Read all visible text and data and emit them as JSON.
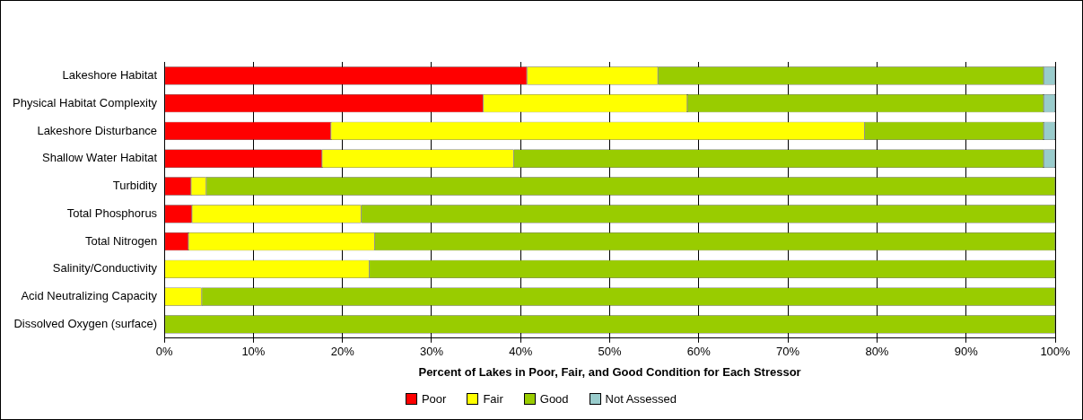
{
  "chart_data": {
    "type": "bar",
    "orientation": "horizontal",
    "stacked": true,
    "xlabel": "Percent of Lakes in Poor, Fair, and Good Condition for Each Stressor",
    "categories": [
      "Lakeshore Habitat",
      "Physical Habitat Complexity",
      "Lakeshore Disturbance",
      "Shallow Water Habitat",
      "Turbidity",
      "Total Phosphorus",
      "Total Nitrogen",
      "Salinity/Conductivity",
      "Acid Neutralizing Capacity",
      "Dissolved Oxygen (surface)"
    ],
    "series": [
      {
        "name": "Poor",
        "color": "#ff0000",
        "values": [
          40.7,
          35.8,
          18.7,
          17.7,
          3.0,
          3.1,
          2.7,
          0,
          0,
          0
        ]
      },
      {
        "name": "Fair",
        "color": "#ffff00",
        "values": [
          14.7,
          22.9,
          59.9,
          21.5,
          1.7,
          19.0,
          20.9,
          23.0,
          4.2,
          0
        ]
      },
      {
        "name": "Good",
        "color": "#99cc00",
        "values": [
          43.3,
          40.0,
          20.1,
          59.5,
          95.3,
          77.9,
          76.4,
          77.0,
          95.8,
          100
        ]
      },
      {
        "name": "Not Assessed",
        "color": "#99cccc",
        "values": [
          1.3,
          1.3,
          1.3,
          1.3,
          0,
          0,
          0,
          0,
          0,
          0
        ]
      }
    ],
    "xlim": [
      0,
      100
    ],
    "xticks": [
      {
        "value": 0,
        "label": "0%"
      },
      {
        "value": 10,
        "label": "10%"
      },
      {
        "value": 20,
        "label": "20%"
      },
      {
        "value": 30,
        "label": "30%"
      },
      {
        "value": 40,
        "label": "40%"
      },
      {
        "value": 50,
        "label": "50%"
      },
      {
        "value": 60,
        "label": "60%"
      },
      {
        "value": 70,
        "label": "70%"
      },
      {
        "value": 80,
        "label": "80%"
      },
      {
        "value": 90,
        "label": "90%"
      },
      {
        "value": 100,
        "label": "100%"
      }
    ],
    "grid": "x",
    "legend": "bottom"
  }
}
